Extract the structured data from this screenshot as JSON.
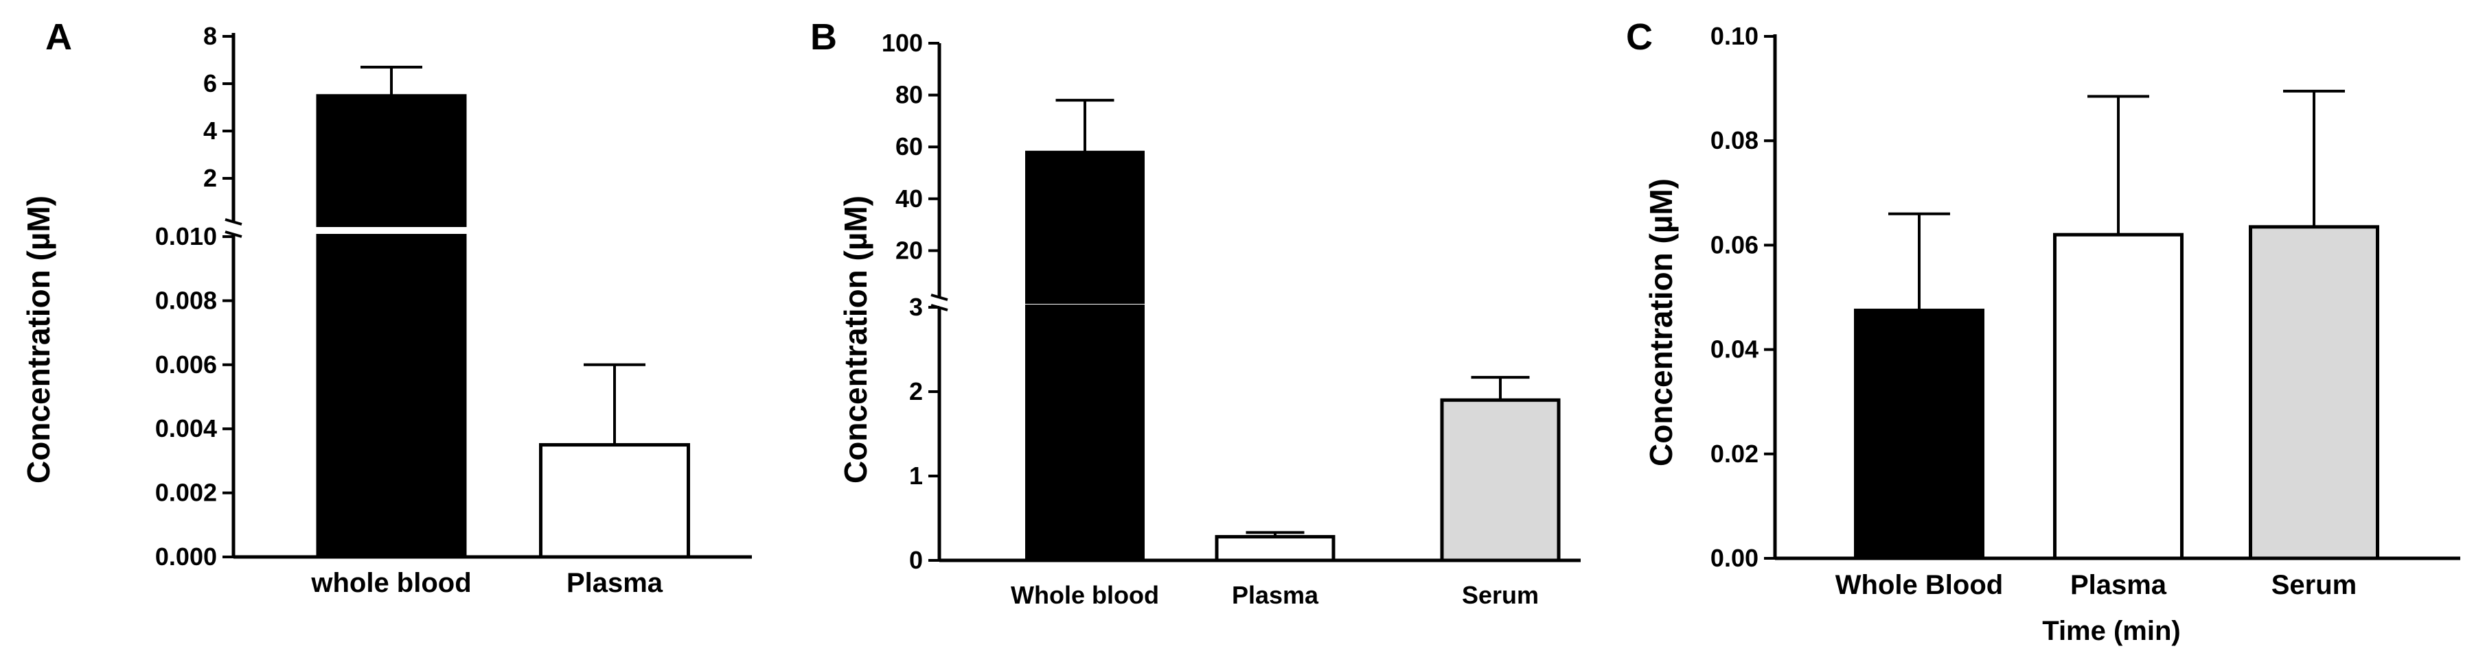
{
  "chart_data": [
    {
      "panel": "A",
      "type": "bar",
      "broken_axis": true,
      "ylabel": "Concentration (µM)",
      "xlabel": "",
      "categories": [
        "whole blood",
        "Plasma"
      ],
      "values": [
        5.5,
        0.0035
      ],
      "errors": [
        1.2,
        0.0025
      ],
      "bar_colors": [
        "#000000",
        "#ffffff"
      ],
      "y_segments": [
        {
          "range": [
            0,
            0.01
          ],
          "ticks": [
            "0.000",
            "0.002",
            "0.004",
            "0.006",
            "0.008",
            "0.010"
          ]
        },
        {
          "range": [
            0,
            8
          ],
          "ticks": [
            "2",
            "4",
            "6",
            "8"
          ]
        }
      ]
    },
    {
      "panel": "B",
      "type": "bar",
      "broken_axis": true,
      "ylabel": "Concentration (µM)",
      "xlabel": "",
      "categories": [
        "Whole blood",
        "Plasma",
        "Serum"
      ],
      "values": [
        58,
        0.28,
        1.9
      ],
      "errors": [
        20,
        0.05,
        0.27
      ],
      "bar_colors": [
        "#000000",
        "#ffffff",
        "#d9d9d9"
      ],
      "y_segments": [
        {
          "range": [
            0,
            3
          ],
          "ticks": [
            "0",
            "1",
            "2",
            "3"
          ]
        },
        {
          "range": [
            0,
            100
          ],
          "ticks": [
            "20",
            "40",
            "60",
            "80",
            "100"
          ]
        }
      ]
    },
    {
      "panel": "C",
      "type": "bar",
      "broken_axis": false,
      "ylabel": "Concentration (µM)",
      "xlabel": "Time (min)",
      "categories": [
        "Whole Blood",
        "Plasma",
        "Serum"
      ],
      "values": [
        0.0475,
        0.062,
        0.0635
      ],
      "errors": [
        0.0185,
        0.0265,
        0.026
      ],
      "bar_colors": [
        "#000000",
        "#ffffff",
        "#d9d9d9"
      ],
      "y_segments": [
        {
          "range": [
            0,
            0.1
          ],
          "ticks": [
            "0.00",
            "0.02",
            "0.04",
            "0.06",
            "0.08",
            "0.10"
          ]
        }
      ]
    }
  ]
}
